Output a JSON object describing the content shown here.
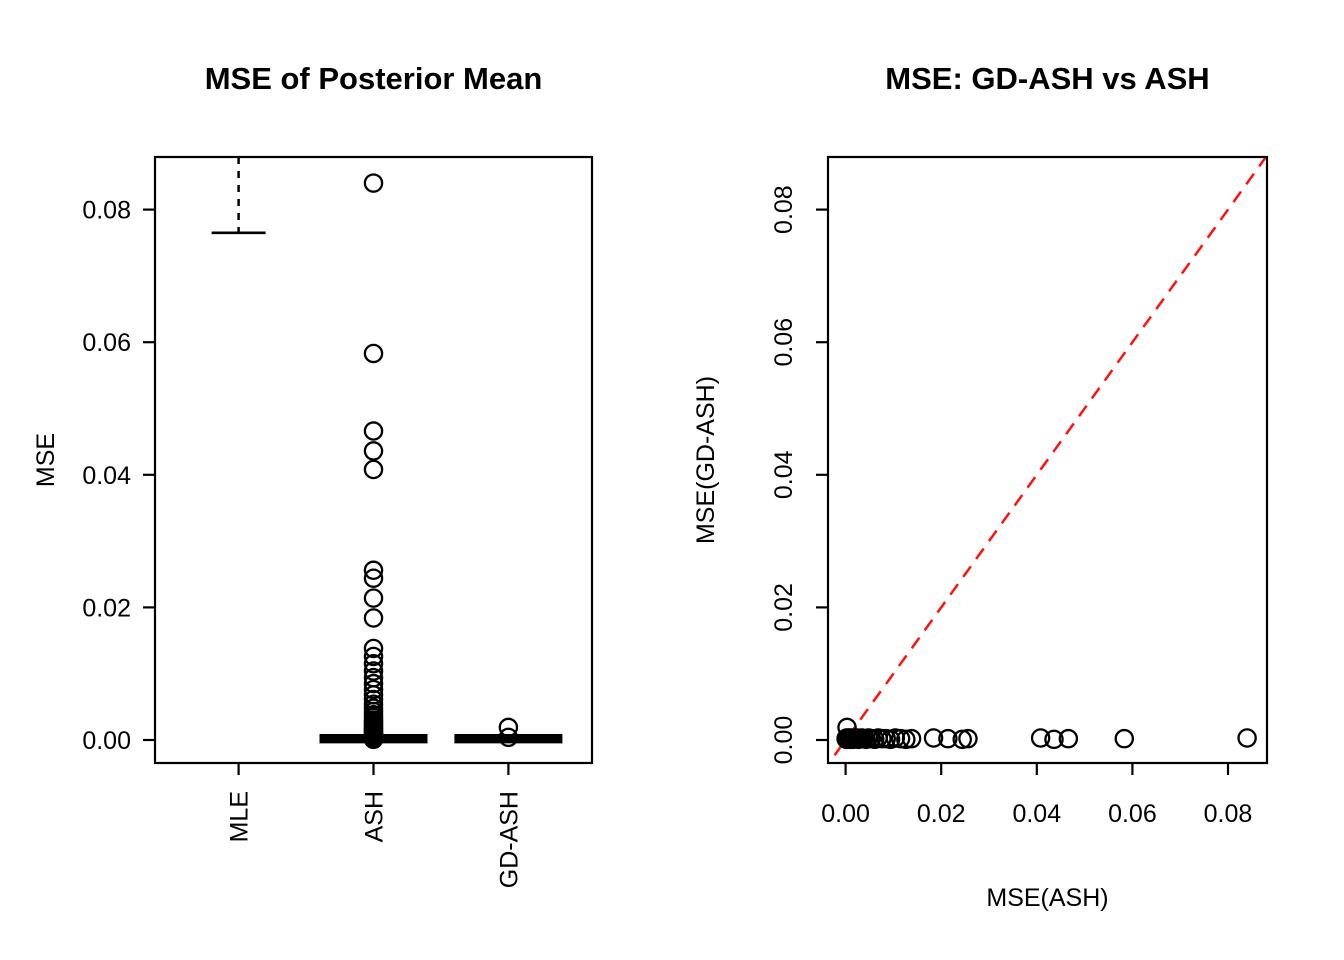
{
  "figure": {
    "background": "#ffffff",
    "stroke_color": "#000000",
    "accent_red": "#ff1111"
  },
  "chart_data": [
    {
      "type": "boxplot",
      "title": "MSE of Posterior Mean",
      "ylabel": "MSE",
      "xlabel": "",
      "categories": [
        "MLE",
        "ASH",
        "GD-ASH"
      ],
      "ylim": [
        -0.0037,
        0.0879
      ],
      "grid": false,
      "y_ticks": [
        {
          "value": 0.0,
          "label": "0.00"
        },
        {
          "value": 0.02,
          "label": "0.02"
        },
        {
          "value": 0.04,
          "label": "0.04"
        },
        {
          "value": 0.06,
          "label": "0.06"
        },
        {
          "value": 0.08,
          "label": "0.08"
        }
      ],
      "series": [
        {
          "name": "MLE",
          "box_above_ylim": true,
          "lower_whisker": 0.0765,
          "whisker_style": "dashed",
          "outliers": []
        },
        {
          "name": "ASH",
          "median": 0.0002,
          "q1": 0.0,
          "q3": 0.0005,
          "upper_whisker": 0.0008,
          "lower_whisker": 0.0,
          "outliers": [
            0.0001,
            0.0002,
            0.0002,
            0.0003,
            0.0004,
            0.0005,
            0.0006,
            0.0007,
            0.0009,
            0.001,
            0.0012,
            0.0014,
            0.0016,
            0.0018,
            0.0021,
            0.0024,
            0.0027,
            0.003,
            0.0034,
            0.0038,
            0.0043,
            0.0048,
            0.0054,
            0.0061,
            0.0068,
            0.0076,
            0.0085,
            0.0094,
            0.0104,
            0.0115,
            0.0126,
            0.0138,
            0.0184,
            0.0214,
            0.0244,
            0.0256,
            0.0408,
            0.0436,
            0.0466,
            0.0583,
            0.084
          ]
        },
        {
          "name": "GD-ASH",
          "median": 0.0002,
          "q1": 0.0,
          "q3": 0.0005,
          "upper_whisker": 0.0008,
          "lower_whisker": 0.0,
          "outliers": [
            0.0019,
            0.0004
          ]
        }
      ]
    },
    {
      "type": "scatter",
      "title": "MSE: GD-ASH vs ASH",
      "xlabel": "MSE(ASH)",
      "ylabel": "MSE(GD-ASH)",
      "xlim": [
        -0.0037,
        0.0882
      ],
      "ylim": [
        -0.0037,
        0.0879
      ],
      "grid": false,
      "marker": "open-circle",
      "x_ticks": [
        {
          "value": 0.0,
          "label": "0.00"
        },
        {
          "value": 0.02,
          "label": "0.02"
        },
        {
          "value": 0.04,
          "label": "0.04"
        },
        {
          "value": 0.06,
          "label": "0.06"
        },
        {
          "value": 0.08,
          "label": "0.08"
        }
      ],
      "y_ticks": [
        {
          "value": 0.0,
          "label": "0.00"
        },
        {
          "value": 0.02,
          "label": "0.02"
        },
        {
          "value": 0.04,
          "label": "0.04"
        },
        {
          "value": 0.06,
          "label": "0.06"
        },
        {
          "value": 0.08,
          "label": "0.08"
        }
      ],
      "identity_line": {
        "slope": 1,
        "intercept": 0,
        "style": "dashed",
        "color": "#ff1111"
      },
      "points": {
        "x": [
          0.0001,
          0.0002,
          0.0002,
          0.0003,
          0.0004,
          0.0005,
          0.0006,
          0.0007,
          0.0009,
          0.001,
          0.0012,
          0.0014,
          0.0016,
          0.0018,
          0.0021,
          0.0024,
          0.0027,
          0.003,
          0.0034,
          0.0038,
          0.0043,
          0.0048,
          0.0054,
          0.0061,
          0.0068,
          0.0076,
          0.0085,
          0.0094,
          0.0104,
          0.0115,
          0.0126,
          0.0138,
          0.0184,
          0.0214,
          0.0244,
          0.0256,
          0.0408,
          0.0436,
          0.0466,
          0.0583,
          0.084
        ],
        "y": [
          0.0002,
          0.0001,
          0.0003,
          0.0019,
          0.0001,
          0.0002,
          0.0003,
          0.0002,
          0.0003,
          0.0001,
          0.0002,
          0.0003,
          0.0001,
          0.0002,
          0.0002,
          0.0003,
          0.0001,
          0.0002,
          0.0003,
          0.0002,
          0.0001,
          0.0003,
          0.0002,
          0.0001,
          0.0003,
          0.0002,
          0.0002,
          0.0001,
          0.0003,
          0.0002,
          0.0001,
          0.0002,
          0.0003,
          0.0002,
          0.0001,
          0.0002,
          0.0003,
          0.0001,
          0.0002,
          0.0002,
          0.0003
        ]
      }
    }
  ]
}
